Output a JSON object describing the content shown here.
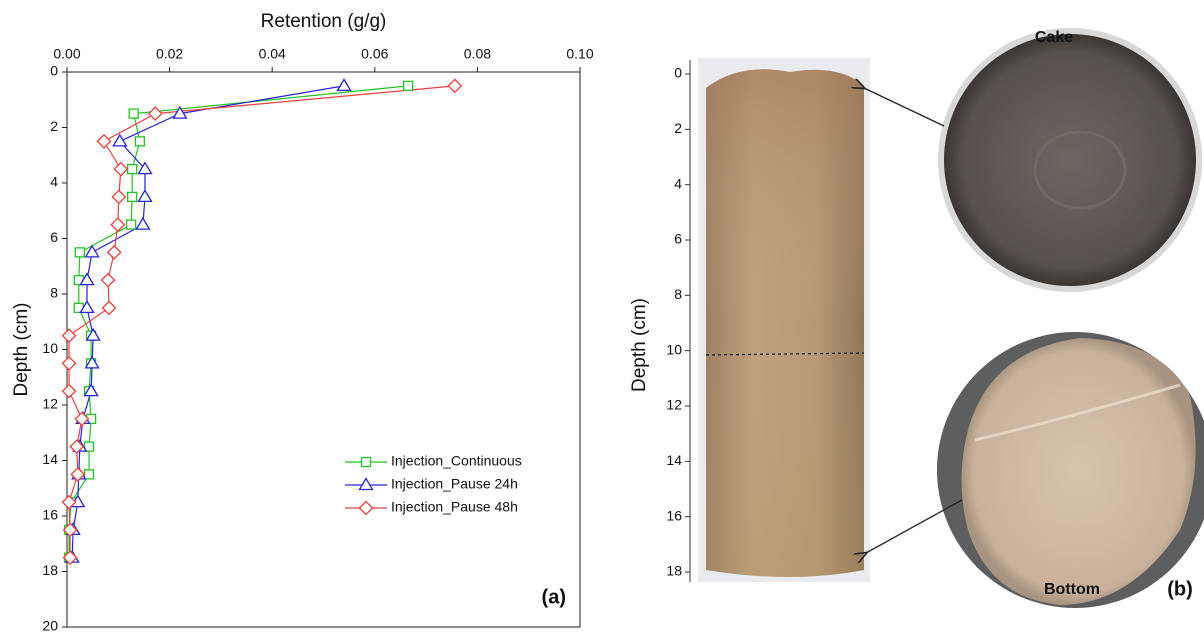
{
  "chart_data": [
    {
      "type": "line",
      "xlabel": "Retention (g/g)",
      "ylabel": "Depth (cm)",
      "panel_label": "(a)",
      "xlim": [
        0,
        0.1
      ],
      "xticks": [
        {
          "value": 0,
          "label": "0.00"
        },
        0.02,
        0.04,
        0.06,
        0.08,
        {
          "value": 0.1,
          "label": "0.10"
        }
      ],
      "ylim": [
        0,
        20
      ],
      "yticks": [
        0,
        2,
        4,
        6,
        8,
        10,
        12,
        14,
        16,
        18,
        20
      ],
      "y_inverted": true,
      "legend": "lower right",
      "y": [
        0.5,
        1.5,
        2.5,
        3.5,
        4.5,
        5.5,
        6.5,
        7.5,
        8.5,
        9.5,
        10.5,
        11.5,
        12.5,
        13.5,
        14.5,
        15.5,
        16.5,
        17.5
      ],
      "series": [
        {
          "name": "Injection_Continuous",
          "color": "#22c322",
          "marker": "square",
          "values": [
            0.0665,
            0.013,
            0.0142,
            0.0127,
            0.0127,
            0.0125,
            0.0025,
            0.0023,
            0.0023,
            0.0047,
            0.0047,
            0.0043,
            0.0047,
            0.0043,
            0.0043,
            0.0008,
            0.0004,
            0.0004
          ]
        },
        {
          "name": "Injection_Pause 24h",
          "color": "#2424d8",
          "marker": "triangle",
          "values": [
            0.054,
            0.022,
            0.0103,
            0.0152,
            0.0152,
            0.0148,
            0.0049,
            0.0039,
            0.0039,
            0.0051,
            0.0049,
            0.0047,
            0.0031,
            0.0025,
            0.0023,
            0.0021,
            0.0012,
            0.001
          ]
        },
        {
          "name": "Injection_Pause 48h",
          "color": "#e8403c",
          "marker": "diamond",
          "values": [
            0.0756,
            0.0172,
            0.0072,
            0.0105,
            0.0101,
            0.0099,
            0.0092,
            0.008,
            0.0082,
            0.0004,
            0.0004,
            0.0004,
            0.0029,
            0.0019,
            0.0021,
            0.0004,
            0.0006,
            0.0006
          ]
        }
      ]
    },
    {
      "type": "image",
      "ylabel": "Depth (cm)",
      "panel_label": "(b)",
      "ylim": [
        0,
        18
      ],
      "yticks": [
        0,
        2,
        4,
        6,
        8,
        10,
        12,
        14,
        16,
        18
      ],
      "y_inverted": true,
      "annotations": [
        "Cake",
        "Bottom"
      ]
    }
  ]
}
